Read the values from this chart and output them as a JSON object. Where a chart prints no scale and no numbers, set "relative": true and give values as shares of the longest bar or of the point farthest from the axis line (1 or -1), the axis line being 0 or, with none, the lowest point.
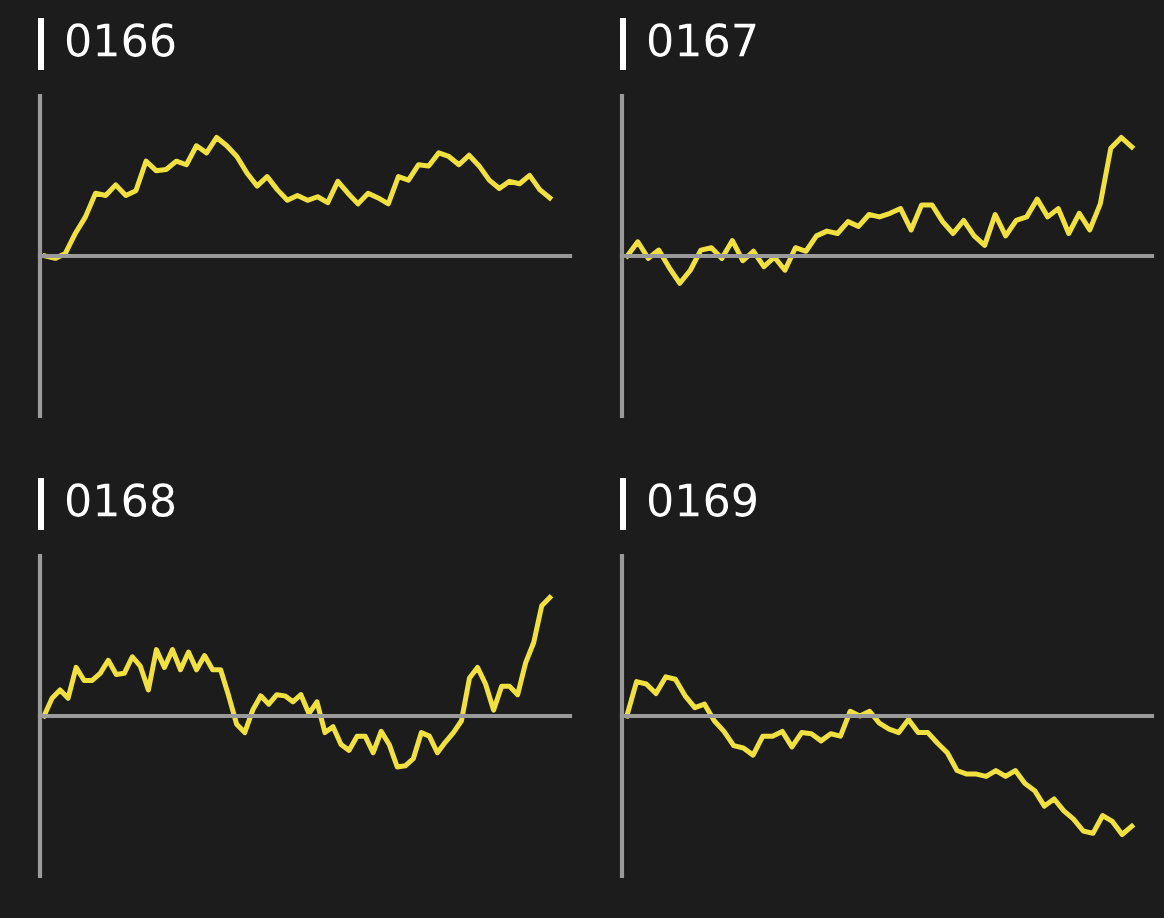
{
  "chart_data": [
    {
      "type": "line",
      "title": "0166",
      "relative": true,
      "categories": [
        null,
        null,
        null,
        null,
        null,
        null,
        null,
        null,
        null,
        null,
        null,
        null,
        null,
        null,
        null,
        null,
        null,
        null,
        null,
        null,
        null,
        null,
        null,
        null,
        null,
        null,
        null,
        null,
        null,
        null,
        null,
        null,
        null,
        null,
        null,
        null,
        null,
        null,
        null,
        null,
        null,
        null,
        null,
        null,
        null,
        null,
        null,
        null,
        null,
        null,
        null
      ],
      "series": [
        {
          "color": "#f0e040",
          "values": [
            0,
            -0.02,
            0.02,
            0.19,
            0.33,
            0.53,
            0.51,
            0.6,
            0.51,
            0.55,
            0.8,
            0.72,
            0.73,
            0.8,
            0.77,
            0.93,
            0.87,
            1,
            0.93,
            0.84,
            0.7,
            0.59,
            0.67,
            0.56,
            0.47,
            0.51,
            0.47,
            0.5,
            0.45,
            0.63,
            0.53,
            0.44,
            0.53,
            0.49,
            0.44,
            0.67,
            0.64,
            0.77,
            0.76,
            0.87,
            0.84,
            0.77,
            0.85,
            0.76,
            0.64,
            0.57,
            0.63,
            0.61,
            0.68,
            0.56,
            0.49
          ]
        }
      ]
    },
    {
      "type": "line",
      "title": "0167",
      "relative": true,
      "categories": [
        null,
        null,
        null,
        null,
        null,
        null,
        null,
        null,
        null,
        null,
        null,
        null,
        null,
        null,
        null,
        null,
        null,
        null,
        null,
        null,
        null,
        null,
        null,
        null,
        null,
        null,
        null,
        null,
        null,
        null,
        null,
        null,
        null,
        null,
        null,
        null,
        null,
        null,
        null,
        null,
        null,
        null,
        null,
        null,
        null,
        null,
        null,
        null,
        null
      ],
      "series": [
        {
          "color": "#f0e040",
          "values": [
            0,
            0.12,
            -0.02,
            0.05,
            -0.1,
            -0.23,
            -0.12,
            0.05,
            0.07,
            -0.02,
            0.13,
            -0.04,
            0.04,
            -0.09,
            -0.01,
            -0.12,
            0.07,
            0.04,
            0.17,
            0.21,
            0.19,
            0.29,
            0.25,
            0.35,
            0.33,
            0.36,
            0.4,
            0.22,
            0.43,
            0.43,
            0.29,
            0.19,
            0.3,
            0.17,
            0.09,
            0.35,
            0.17,
            0.3,
            0.33,
            0.48,
            0.33,
            0.4,
            0.19,
            0.36,
            0.22,
            0.44,
            0.91,
            1.0,
            0.92
          ]
        }
      ]
    },
    {
      "type": "line",
      "title": "0168",
      "relative": true,
      "categories": [
        null,
        null,
        null,
        null,
        null,
        null,
        null,
        null,
        null,
        null,
        null,
        null,
        null,
        null,
        null,
        null,
        null,
        null,
        null,
        null,
        null,
        null,
        null,
        null,
        null,
        null,
        null,
        null,
        null,
        null,
        null,
        null,
        null,
        null,
        null,
        null,
        null,
        null,
        null,
        null,
        null,
        null,
        null,
        null,
        null,
        null,
        null,
        null,
        null,
        null,
        null,
        null,
        null,
        null,
        null,
        null,
        null,
        null,
        null,
        null,
        null,
        null,
        null,
        null
      ],
      "series": [
        {
          "color": "#f0e040",
          "values": [
            0,
            0.15,
            0.22,
            0.15,
            0.41,
            0.3,
            0.3,
            0.36,
            0.47,
            0.35,
            0.36,
            0.5,
            0.42,
            0.22,
            0.56,
            0.41,
            0.56,
            0.39,
            0.54,
            0.39,
            0.51,
            0.39,
            0.39,
            0.17,
            -0.07,
            -0.14,
            0.05,
            0.17,
            0.1,
            0.18,
            0.17,
            0.12,
            0.18,
            0.02,
            0.12,
            -0.14,
            -0.09,
            -0.24,
            -0.29,
            -0.17,
            -0.17,
            -0.31,
            -0.13,
            -0.24,
            -0.43,
            -0.42,
            -0.36,
            -0.14,
            -0.17,
            -0.31,
            -0.22,
            -0.14,
            -0.04,
            0.32,
            0.41,
            0.27,
            0.05,
            0.25,
            0.25,
            0.18,
            0.45,
            0.62,
            0.93,
            1.0
          ]
        }
      ]
    },
    {
      "type": "line",
      "title": "0169",
      "relative": true,
      "categories": [
        null,
        null,
        null,
        null,
        null,
        null,
        null,
        null,
        null,
        null,
        null,
        null,
        null,
        null,
        null,
        null,
        null,
        null,
        null,
        null,
        null,
        null,
        null,
        null,
        null,
        null,
        null,
        null,
        null,
        null,
        null,
        null,
        null,
        null,
        null,
        null,
        null,
        null,
        null,
        null,
        null,
        null,
        null,
        null,
        null,
        null,
        null,
        null,
        null,
        null,
        null,
        null,
        null
      ],
      "series": [
        {
          "color": "#f0e040",
          "values": [
            0,
            0.29,
            0.27,
            0.19,
            0.33,
            0.31,
            0.17,
            0.07,
            0.1,
            -0.04,
            -0.13,
            -0.25,
            -0.27,
            -0.33,
            -0.17,
            -0.17,
            -0.13,
            -0.26,
            -0.14,
            -0.15,
            -0.21,
            -0.15,
            -0.17,
            0.04,
            0,
            0.04,
            -0.06,
            -0.11,
            -0.14,
            -0.03,
            -0.14,
            -0.14,
            -0.23,
            -0.31,
            -0.46,
            -0.49,
            -0.49,
            -0.51,
            -0.46,
            -0.51,
            -0.46,
            -0.57,
            -0.63,
            -0.76,
            -0.7,
            -0.8,
            -0.87,
            -0.97,
            -0.99,
            -0.84,
            -0.89,
            -1.0,
            -0.93
          ]
        }
      ]
    }
  ]
}
